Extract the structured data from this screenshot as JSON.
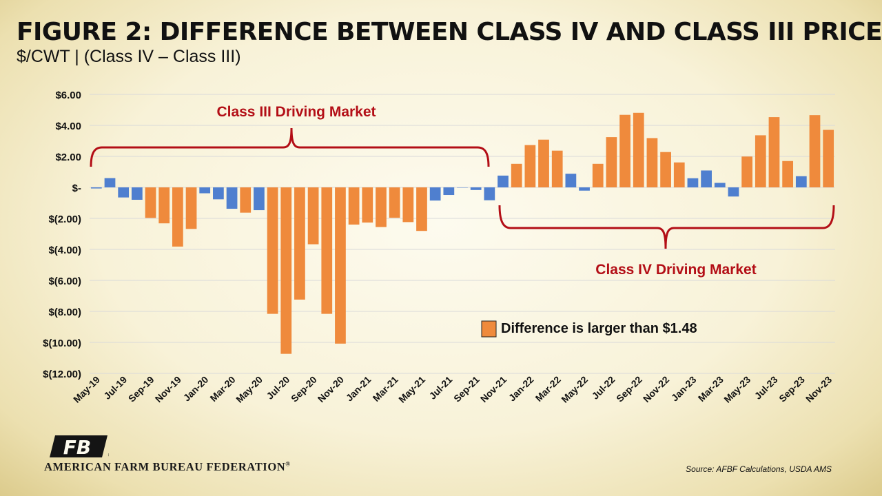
{
  "title": "FIGURE 2: DIFFERENCE BETWEEN CLASS IV AND CLASS III PRICE",
  "subtitle": "$/CWT | (Class IV – Class III)",
  "source": "Source: AFBF Calculations, USDA AMS",
  "logo_text": "AMERICAN FARM BUREAU FEDERATION",
  "logo_registered": "®",
  "logo_letters": "FB",
  "chart_data": {
    "type": "bar",
    "title": "FIGURE 2: DIFFERENCE BETWEEN CLASS IV AND CLASS III PRICE",
    "ylabel": "",
    "xlabel": "",
    "ylim": [
      -12,
      6
    ],
    "grid": true,
    "yticks": [
      {
        "value": 6,
        "label": "$6.00"
      },
      {
        "value": 4,
        "label": "$4.00"
      },
      {
        "value": 2,
        "label": "$2.00"
      },
      {
        "value": 0,
        "label": "$-"
      },
      {
        "value": -2,
        "label": "$(2.00)"
      },
      {
        "value": -4,
        "label": "$(4.00)"
      },
      {
        "value": -6,
        "label": "$(6.00)"
      },
      {
        "value": -8,
        "label": "$(8.00)"
      },
      {
        "value": -10,
        "label": "$(10.00)"
      },
      {
        "value": -12,
        "label": "$(12.00)"
      }
    ],
    "categories": [
      "May-19",
      "Jun-19",
      "Jul-19",
      "Aug-19",
      "Sep-19",
      "Oct-19",
      "Nov-19",
      "Dec-19",
      "Jan-20",
      "Feb-20",
      "Mar-20",
      "Apr-20",
      "May-20",
      "Jun-20",
      "Jul-20",
      "Aug-20",
      "Sep-20",
      "Oct-20",
      "Nov-20",
      "Dec-20",
      "Jan-21",
      "Feb-21",
      "Mar-21",
      "Apr-21",
      "May-21",
      "Jun-21",
      "Jul-21",
      "Aug-21",
      "Sep-21",
      "Oct-21",
      "Nov-21",
      "Dec-21",
      "Jan-22",
      "Feb-22",
      "Mar-22",
      "Apr-22",
      "May-22",
      "Jun-22",
      "Jul-22",
      "Aug-22",
      "Sep-22",
      "Oct-22",
      "Nov-22",
      "Dec-22",
      "Jan-23",
      "Feb-23",
      "Mar-23",
      "Apr-23",
      "May-23",
      "Jun-23",
      "Jul-23",
      "Aug-23",
      "Sep-23",
      "Oct-23",
      "Nov-23"
    ],
    "x_tick_labels": [
      "May-19",
      "Jul-19",
      "Sep-19",
      "Nov-19",
      "Jan-20",
      "Mar-20",
      "May-20",
      "Jul-20",
      "Sep-20",
      "Nov-20",
      "Jan-21",
      "Mar-21",
      "May-21",
      "Jul-21",
      "Sep-21",
      "Nov-21",
      "Jan-22",
      "Mar-22",
      "May-22",
      "Jul-22",
      "Sep-22",
      "Nov-22",
      "Jan-23",
      "Mar-23",
      "May-23",
      "Jul-23",
      "Sep-23",
      "Nov-23"
    ],
    "values": [
      -0.07,
      0.6,
      -0.65,
      -0.8,
      -1.97,
      -2.32,
      -3.82,
      -2.68,
      -0.38,
      -0.77,
      -1.38,
      -1.63,
      -1.47,
      -8.16,
      -10.74,
      -7.24,
      -3.67,
      -8.16,
      -10.08,
      -2.4,
      -2.27,
      -2.56,
      -1.96,
      -2.24,
      -2.81,
      -0.85,
      -0.49,
      0.0,
      -0.17,
      -0.83,
      0.76,
      1.52,
      2.73,
      3.08,
      2.37,
      0.88,
      -0.21,
      1.52,
      3.24,
      4.68,
      4.81,
      3.18,
      2.28,
      1.61,
      0.59,
      1.09,
      0.29,
      -0.59,
      1.99,
      3.36,
      4.53,
      1.7,
      0.72,
      4.66,
      3.71
    ],
    "threshold": 1.48,
    "colors": {
      "above_threshold": "#ef8a3c",
      "below_threshold": "#4f7fcf",
      "annotation": "#b30e16",
      "grid": "#d9d9d9"
    },
    "legend": {
      "label": "Difference is larger than $1.48",
      "placement": "lower-right"
    },
    "annotations": [
      {
        "label": "Class III Driving Market",
        "from": "May-19",
        "to": "Oct-21",
        "brace": "above"
      },
      {
        "label": "Class IV Driving Market",
        "from": "Nov-21",
        "to": "Nov-23",
        "brace": "below"
      }
    ]
  }
}
